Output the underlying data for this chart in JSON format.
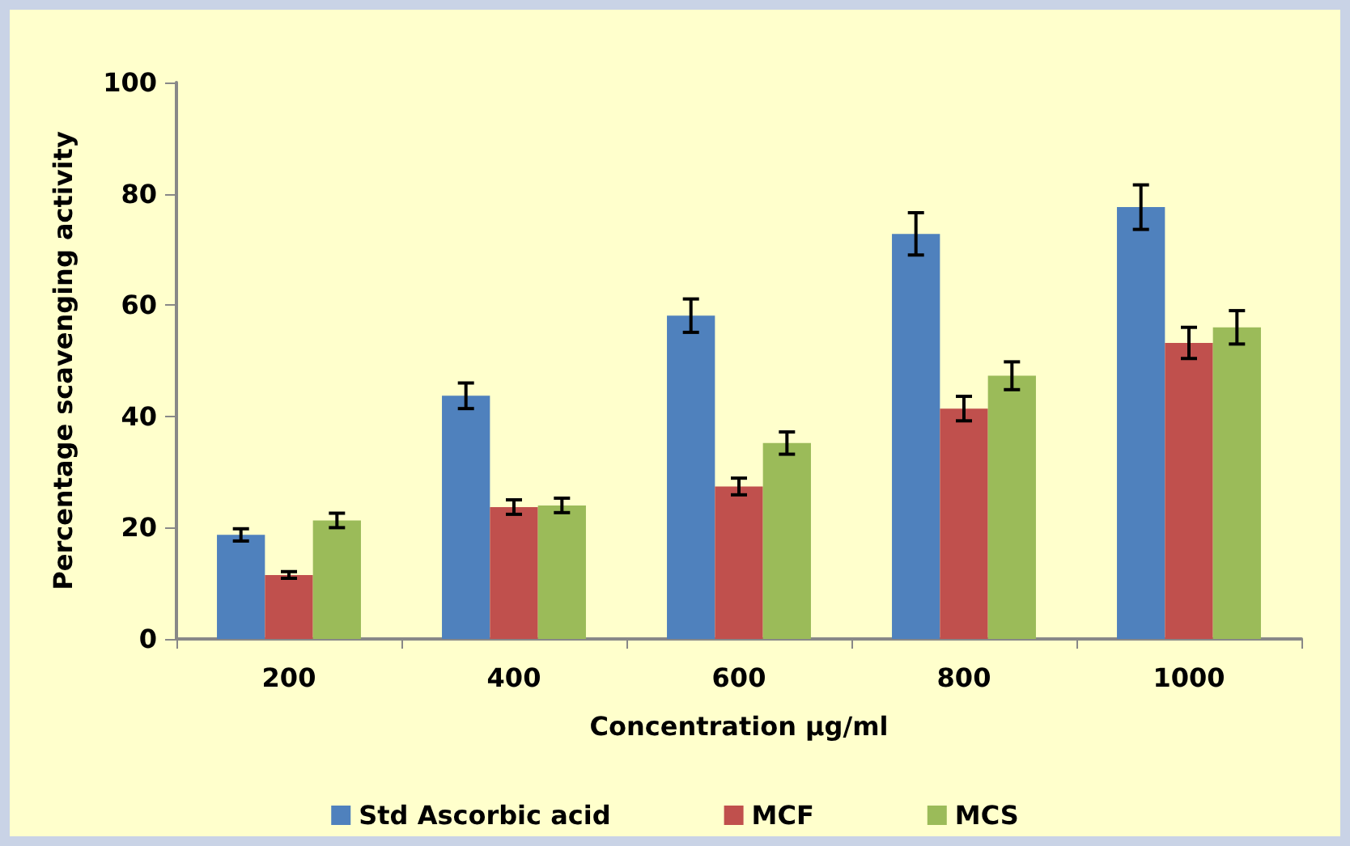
{
  "chart_data": {
    "type": "bar",
    "xlabel": "Concentration µg/ml",
    "ylabel": "Percentage scavenging activity",
    "categories": [
      "200",
      "400",
      "600",
      "800",
      "1000"
    ],
    "series": [
      {
        "name": "Std Ascorbic acid",
        "color": "#4f81bd",
        "values": [
          18.7,
          43.7,
          58.1,
          72.8,
          77.6
        ],
        "errors": [
          1.1,
          2.3,
          3,
          3.8,
          4
        ]
      },
      {
        "name": "MCF",
        "color": "#c0504d",
        "values": [
          11.5,
          23.7,
          27.4,
          41.4,
          53.2
        ],
        "errors": [
          0.6,
          1.3,
          1.5,
          2.2,
          2.8
        ]
      },
      {
        "name": "MCS",
        "color": "#9bbb59",
        "values": [
          21.3,
          24,
          35.2,
          47.3,
          56
        ],
        "errors": [
          1.3,
          1.3,
          2,
          2.5,
          3
        ]
      }
    ],
    "ylim": [
      0,
      100
    ],
    "yticks": [
      0,
      20,
      40,
      60,
      80,
      100
    ],
    "grid": false,
    "legend": "bottom"
  }
}
